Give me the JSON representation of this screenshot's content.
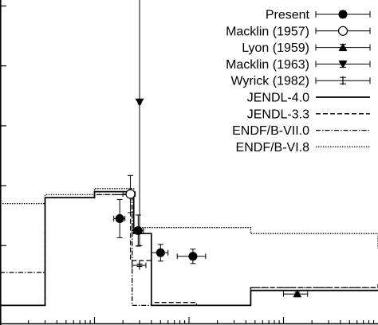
{
  "chart_data": {
    "type": "line",
    "title": "",
    "xlabel": "",
    "ylabel": "",
    "grid": false,
    "legend_position": "top-right",
    "x_scale": "log",
    "legend": [
      {
        "label": "Present",
        "marker": "circle-filled",
        "line": "errorbar"
      },
      {
        "label": "Macklin (1957)",
        "marker": "circle-open",
        "line": "errorbar"
      },
      {
        "label": "Lyon (1959)",
        "marker": "triangle-up",
        "line": "errorbar"
      },
      {
        "label": "Macklin (1963)",
        "marker": "triangle-down",
        "line": "errorbar"
      },
      {
        "label": "Wyrick (1982)",
        "marker": "tick",
        "line": "errorbar"
      },
      {
        "label": "JENDL-4.0",
        "line": "solid"
      },
      {
        "label": "JENDL-3.3",
        "line": "dashed"
      },
      {
        "label": "ENDF/B-VII.0",
        "line": "dashdot"
      },
      {
        "label": "ENDF/B-VI.8",
        "line": "dotted"
      }
    ],
    "points": [
      {
        "series": "Present",
        "x": 0.185,
        "y": 1.45,
        "xerr": [
          0.16,
          0.21
        ],
        "yerr": [
          1.13,
          1.77
        ]
      },
      {
        "series": "Present",
        "x": 0.29,
        "y": 1.25,
        "xerr": [
          0.25,
          0.33
        ],
        "yerr": [
          0.99,
          1.51
        ]
      },
      {
        "series": "Present",
        "x": 0.5,
        "y": 0.88,
        "xerr": [
          0.4,
          0.6
        ],
        "yerr": [
          0.74,
          1.02
        ]
      },
      {
        "series": "Present",
        "x": 1.1,
        "y": 0.82,
        "xerr": [
          0.75,
          1.5
        ],
        "yerr": [
          0.7,
          0.94
        ]
      },
      {
        "series": "Macklin (1957)",
        "x": 0.24,
        "y": 1.86,
        "xerr": [
          0.2,
          0.27
        ],
        "yerr": [
          1.55,
          2.17
        ]
      },
      {
        "series": "Lyon (1959)",
        "x": 14.0,
        "y": 0.19,
        "xerr": [
          10.0,
          18.0
        ],
        "yerr": [
          0.16,
          0.22
        ]
      },
      {
        "series": "Macklin (1963)",
        "x": 0.3,
        "y": 3.4,
        "xerr": [
          0.29,
          0.31
        ],
        "yerr": [
          1.0,
          5.8
        ]
      },
      {
        "series": "Wyrick (1982)",
        "x": 0.3,
        "y": 0.67,
        "xerr": [
          0.25,
          0.35
        ],
        "yerr": [
          0.65,
          0.69
        ]
      }
    ],
    "step_lines": [
      {
        "series": "JENDL-4.0",
        "edges": [
          0.01,
          0.03,
          0.1,
          0.26,
          0.4,
          1.2,
          4.5,
          12,
          40,
          100
        ],
        "values": [
          0.0,
          1.8,
          1.9,
          1.2,
          0.0,
          0.0,
          0.25,
          0.25,
          0.25,
          0.25
        ],
        "tail_x": [
          40,
          60,
          80,
          100
        ],
        "tail_y": [
          0.25,
          0.3,
          0.45,
          0.6
        ]
      },
      {
        "series": "JENDL-3.3",
        "edges": [
          0.01,
          0.03,
          0.1,
          0.24,
          0.4,
          1.2,
          4.5,
          100
        ],
        "values": [
          0.0,
          1.8,
          1.85,
          0.75,
          0.05,
          0.0,
          0.3,
          0.35
        ]
      },
      {
        "series": "ENDF/B-VII.0",
        "edges": [
          0.01,
          0.03,
          0.1,
          0.25,
          0.4,
          1.2,
          4.5,
          100
        ],
        "values": [
          0.55,
          1.8,
          1.85,
          0.0,
          0.0,
          0.0,
          0.3,
          0.35
        ]
      },
      {
        "series": "ENDF/B-VI.8",
        "edges": [
          0.01,
          0.03,
          0.1,
          0.26,
          0.4,
          1.2,
          4.5,
          100
        ],
        "values": [
          1.7,
          1.85,
          1.95,
          1.3,
          1.3,
          1.3,
          1.2,
          0.95
        ]
      }
    ],
    "xlim": [
      0.01,
      100
    ],
    "ylim": [
      -0.3,
      5.1
    ]
  }
}
